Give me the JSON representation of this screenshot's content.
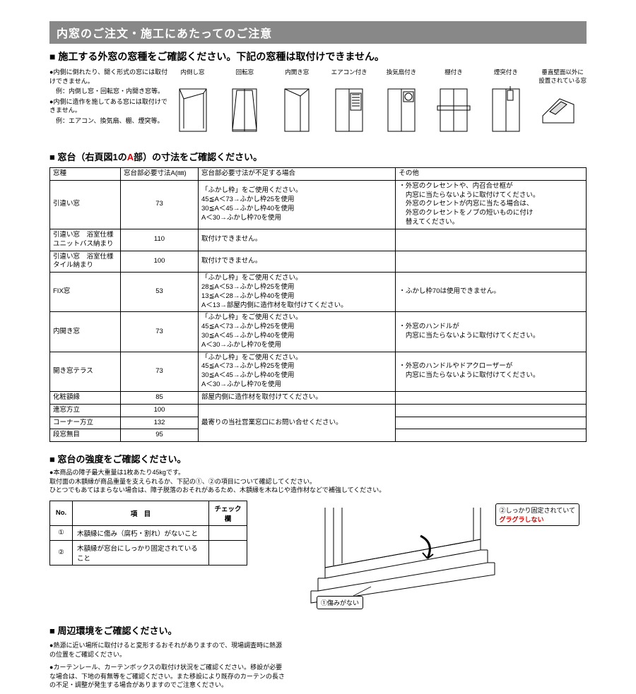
{
  "banner": "内窓のご注文・施工にあたってのご注意",
  "section1": {
    "heading": "施工する外窓の窓種をご確認ください。下記の窓種は取付けできません。",
    "notes": [
      {
        "cls": "bullet",
        "text": "内側に倒れたり、開く形式の窓には取付けできません。"
      },
      {
        "cls": "indent",
        "text": "例：内倒し窓・回転窓・内開き窓等。"
      },
      {
        "cls": "bullet",
        "text": "内側に造作を施してある窓には取付けできません。"
      },
      {
        "cls": "indent",
        "text": "例：エアコン、換気扇、棚、煙突等。"
      }
    ],
    "windows": [
      "内倒し窓",
      "回転窓",
      "内開き窓",
      "エアコン付き",
      "換気扇付き",
      "棚付き",
      "煙突付き",
      "垂直壁面以外に設置されている窓"
    ]
  },
  "section2": {
    "heading_pre": "窓台（右頁図1の",
    "heading_red": "A",
    "heading_post": "部）の寸法をご確認ください。",
    "columns": [
      "窓種",
      "窓台部必要寸法A(㎜)",
      "窓台部必要寸法が不足する場合",
      "その他"
    ],
    "rows": [
      {
        "c0": "引違い窓",
        "c1": "73",
        "c2": "「ふかし枠」をご使用ください。\n45≦A＜73→ふかし枠25を使用\n30≦A＜45→ふかし枠40を使用\nA＜30→ふかし枠70を使用",
        "c3": "・外窓のクレセントや、内召合せ框が\n　内窓に当たらないように取付けてください。\n　外窓のクレセントが内窓に当たる場合は、\n　外窓のクレセントをノブの短いものに付け\n　替えてください。"
      },
      {
        "c0": "引違い窓　浴室仕様\nユニットバス納まり",
        "c1": "110",
        "c2": "取付けできません。",
        "c3": ""
      },
      {
        "c0": "引違い窓　浴室仕様\nタイル納まり",
        "c1": "100",
        "c2": "取付けできません。",
        "c3": ""
      },
      {
        "c0": "FIX窓",
        "c1": "53",
        "c2": "「ふかし枠」をご使用ください。\n28≦A＜53→ふかし枠25を使用\n13≦A＜28→ふかし枠40を使用\nA＜13→部屋内側に造作材を取付けてください。",
        "c3": "・ふかし枠70は使用できません。"
      },
      {
        "c0": "内開き窓",
        "c1": "73",
        "c2": "「ふかし枠」をご使用ください。\n45≦A＜73→ふかし枠25を使用\n30≦A＜45→ふかし枠40を使用\nA＜30→ふかし枠70を使用",
        "c3": "・外窓のハンドルが\n　内窓に当たらないように取付けてください。"
      },
      {
        "c0": "開き窓テラス",
        "c1": "73",
        "c2": "「ふかし枠」をご使用ください。\n45≦A＜73→ふかし枠25を使用\n30≦A＜45→ふかし枠40を使用\nA＜30→ふかし枠70を使用",
        "c3": "・外窓のハンドルやドアクローザーが\n　内窓に当たらないように取付けてください。"
      },
      {
        "c0": "化粧額縁",
        "c1": "85",
        "c2": "部屋内側に造作材を取付けてください。",
        "c3": ""
      },
      {
        "c0": "連窓方立",
        "c1": "100",
        "c2_rowspan": "最寄りの当社営業窓口にお問い合せください。",
        "c3": ""
      },
      {
        "c0": "コーナー方立",
        "c1": "132",
        "c3": ""
      },
      {
        "c0": "段窓無目",
        "c1": "95",
        "c3": ""
      }
    ]
  },
  "section3": {
    "heading": "窓台の強度をご確認ください。",
    "notes": [
      {
        "cls": "bullet",
        "text": "本商品の障子最大重量は1枚あたり45kgです。"
      },
      {
        "cls": "indent",
        "text": "取付面の木額縁が商品重量を支えられるか、下記の①、②の項目について確認してください。"
      },
      {
        "cls": "indent",
        "text": "ひとつでもあてはまらない場合は、障子脱落のおそれがあるため、木額縁を木ねじや造作材などで補強してください。"
      }
    ],
    "check_cols": [
      "No.",
      "項　目",
      "チェック欄"
    ],
    "check_rows": [
      {
        "no": "①",
        "item": "木額縁に傷み（腐朽・割れ）がないこと"
      },
      {
        "no": "②",
        "item": "木額縁が窓台にしっかり固定されていること"
      }
    ],
    "callout1": "①傷みがない",
    "callout2a": "②しっかり固定されていて",
    "callout2b": "グラグラしない"
  },
  "section4": {
    "heading": "周辺環境をご確認ください。",
    "notes": [
      {
        "cls": "bullet",
        "text": "熱源に近い場所に取付けると変形するおそれがありますので、現場調査時に熱源の位置をご確認ください。"
      },
      {
        "cls": "bullet",
        "text": "カーテンレール、カーテンボックスの取付け状況をご確認ください。移設が必要な場合は、下地の有無等をご確認ください。また移設により既存のカーテンの長さの不足・調整が発生する場合がありますのでご注意ください。"
      }
    ]
  }
}
